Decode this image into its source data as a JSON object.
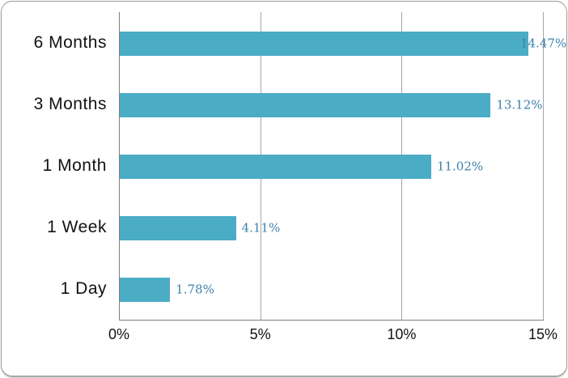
{
  "chart_data": {
    "type": "bar",
    "orientation": "horizontal",
    "title": "",
    "xlabel": "",
    "ylabel": "",
    "categories": [
      "6 Months",
      "3 Months",
      "1 Month",
      "1 Week",
      "1 Day"
    ],
    "values": [
      14.47,
      13.12,
      11.02,
      4.11,
      1.78
    ],
    "data_labels": [
      "14.47%",
      "13.12%",
      "11.02%",
      "4.11%",
      "1.78%"
    ],
    "x_ticks": [
      "0%",
      "5%",
      "10%",
      "15%"
    ],
    "x_tick_values": [
      0,
      5,
      10,
      15
    ],
    "xlim": [
      0,
      15
    ],
    "grid": "vertical-only",
    "legend": "none",
    "colors": {
      "bar": "#4bacc6",
      "data_label": "#3e81ab",
      "gridline": "#a6a6a6",
      "axis_line": "#7f7f7f",
      "text": "#121212",
      "card_border": "#9d9d9d",
      "background": "#ffffff"
    }
  }
}
